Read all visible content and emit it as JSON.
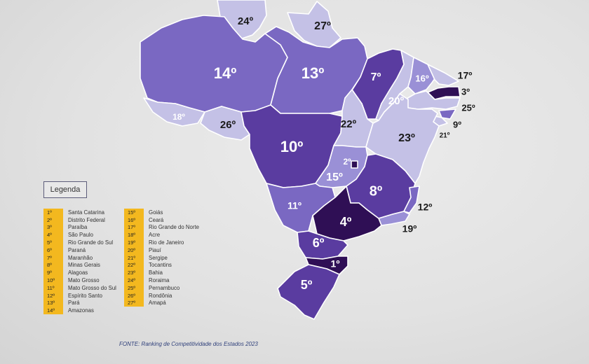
{
  "colors": {
    "very_light": "#c4c1e6",
    "light": "#9a90d6",
    "medium": "#7a68c2",
    "dark": "#5a3ca0",
    "darkest": "#2f0f55",
    "legend_bar": "#f3b81f"
  },
  "legend": {
    "title": "Legenda",
    "col1": [
      {
        "rank": "1º",
        "name": "Santa Catarina"
      },
      {
        "rank": "2º",
        "name": "Distrito Federal"
      },
      {
        "rank": "3º",
        "name": "Paraíba"
      },
      {
        "rank": "4º",
        "name": "São Paulo"
      },
      {
        "rank": "5º",
        "name": "Rio Grande do Sul"
      },
      {
        "rank": "6º",
        "name": "Paraná"
      },
      {
        "rank": "7º",
        "name": "Maranhão"
      },
      {
        "rank": "8º",
        "name": "Minas Gerais"
      },
      {
        "rank": "9º",
        "name": "Alagoas"
      },
      {
        "rank": "10º",
        "name": "Mato Grosso"
      },
      {
        "rank": "11º",
        "name": "Mato Grosso do Sul"
      },
      {
        "rank": "12º",
        "name": "Espírito Santo"
      },
      {
        "rank": "13º",
        "name": "Pará"
      },
      {
        "rank": "14º",
        "name": "Amazonas"
      }
    ],
    "col2": [
      {
        "rank": "15º",
        "name": "Goiás"
      },
      {
        "rank": "16º",
        "name": "Ceará"
      },
      {
        "rank": "17º",
        "name": "Rio Grande do Norte"
      },
      {
        "rank": "18º",
        "name": "Acre"
      },
      {
        "rank": "19º",
        "name": "Rio de Janeiro"
      },
      {
        "rank": "20º",
        "name": "Piauí"
      },
      {
        "rank": "21º",
        "name": "Sergipe"
      },
      {
        "rank": "22º",
        "name": "Tocantins"
      },
      {
        "rank": "23º",
        "name": "Bahia"
      },
      {
        "rank": "24º",
        "name": "Roraima"
      },
      {
        "rank": "25º",
        "name": "Pernambuco"
      },
      {
        "rank": "26º",
        "name": "Rondônia"
      },
      {
        "rank": "27º",
        "name": "Amapá"
      }
    ]
  },
  "states": [
    {
      "id": "amazonas",
      "rank": "14º",
      "tone": "medium"
    },
    {
      "id": "para",
      "rank": "13º",
      "tone": "medium"
    },
    {
      "id": "roraima",
      "rank": "24º",
      "tone": "very_light"
    },
    {
      "id": "amapa",
      "rank": "27º",
      "tone": "very_light"
    },
    {
      "id": "acre",
      "rank": "18º",
      "tone": "very_light"
    },
    {
      "id": "rondonia",
      "rank": "26º",
      "tone": "very_light"
    },
    {
      "id": "mato-grosso",
      "rank": "10º",
      "tone": "dark"
    },
    {
      "id": "maranhao",
      "rank": "7º",
      "tone": "dark"
    },
    {
      "id": "tocantins",
      "rank": "22º",
      "tone": "very_light"
    },
    {
      "id": "piaui",
      "rank": "20º",
      "tone": "very_light"
    },
    {
      "id": "ceara",
      "rank": "16º",
      "tone": "light"
    },
    {
      "id": "rio-grande-do-norte",
      "rank": "17º",
      "tone": "very_light"
    },
    {
      "id": "paraiba",
      "rank": "3º",
      "tone": "darkest"
    },
    {
      "id": "pernambuco",
      "rank": "25º",
      "tone": "very_light"
    },
    {
      "id": "alagoas",
      "rank": "9º",
      "tone": "medium"
    },
    {
      "id": "sergipe",
      "rank": "21º",
      "tone": "very_light"
    },
    {
      "id": "bahia",
      "rank": "23º",
      "tone": "very_light"
    },
    {
      "id": "goias",
      "rank": "15º",
      "tone": "light"
    },
    {
      "id": "distrito-federal",
      "rank": "2º",
      "tone": "darkest"
    },
    {
      "id": "minas-gerais",
      "rank": "8º",
      "tone": "dark"
    },
    {
      "id": "espirito-santo",
      "rank": "12º",
      "tone": "medium"
    },
    {
      "id": "rio-de-janeiro",
      "rank": "19º",
      "tone": "light"
    },
    {
      "id": "sao-paulo",
      "rank": "4º",
      "tone": "darkest"
    },
    {
      "id": "mato-grosso-do-sul",
      "rank": "11º",
      "tone": "medium"
    },
    {
      "id": "parana",
      "rank": "6º",
      "tone": "dark"
    },
    {
      "id": "santa-catarina",
      "rank": "1º",
      "tone": "darkest"
    },
    {
      "id": "rio-grande-do-sul",
      "rank": "5º",
      "tone": "dark"
    }
  ],
  "source": "FONTE: Ranking de Competitividade dos Estados 2023"
}
